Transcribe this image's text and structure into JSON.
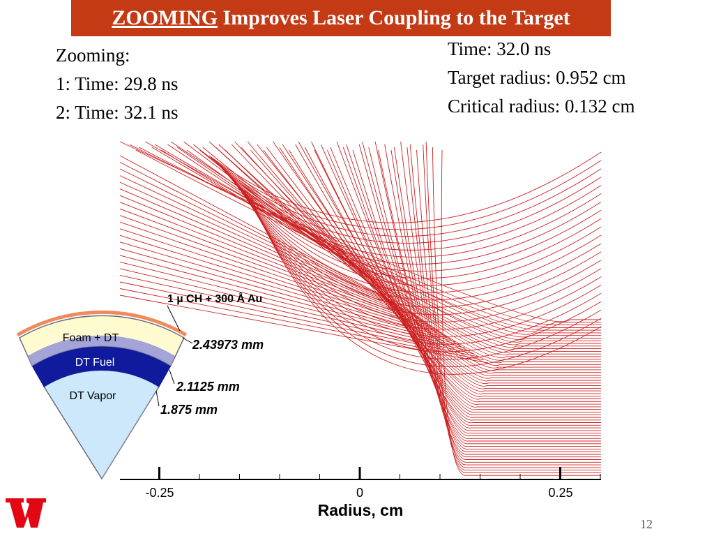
{
  "slide": {
    "title_highlight": "ZOOMING",
    "title_rest": " Improves Laser Coupling to the Target",
    "page_number": "12"
  },
  "zooming": {
    "heading": "Zooming:",
    "lines": [
      "1: Time: 29.8 ns",
      "2: Time: 32.1 ns"
    ]
  },
  "info": {
    "lines": [
      "Time: 32.0 ns",
      "Target radius: 0.952 cm",
      "Critical radius: 0.132 cm"
    ]
  },
  "target": {
    "layers": [
      "Foam + DT",
      "DT Fuel",
      "DT Vapor"
    ],
    "coating": "1 µ CH + 300 Å Au",
    "radii": [
      "2.43973 mm",
      "2.1125 mm",
      "1.875 mm"
    ],
    "colors": {
      "coating": "#f08a5d",
      "foam": "#fffbd0",
      "fuel": "#0f1a9c",
      "vapor": "#cde8fb",
      "wedge_border": "#6a6a7a"
    }
  },
  "chart_data": {
    "type": "line",
    "xlabel": "Radius, cm",
    "xlim": [
      -0.3,
      0.3
    ],
    "ylim": [
      0,
      0.42
    ],
    "x_ticks": [
      -0.25,
      0,
      0.25
    ],
    "x_tick_labels": [
      "-0.25",
      "0",
      "0.25"
    ],
    "critical_radius": 0.132,
    "ray_color": "#cc1f1f",
    "ray_count": 60
  },
  "logo": {
    "name": "uw-w-logo",
    "color": "#e30613"
  }
}
